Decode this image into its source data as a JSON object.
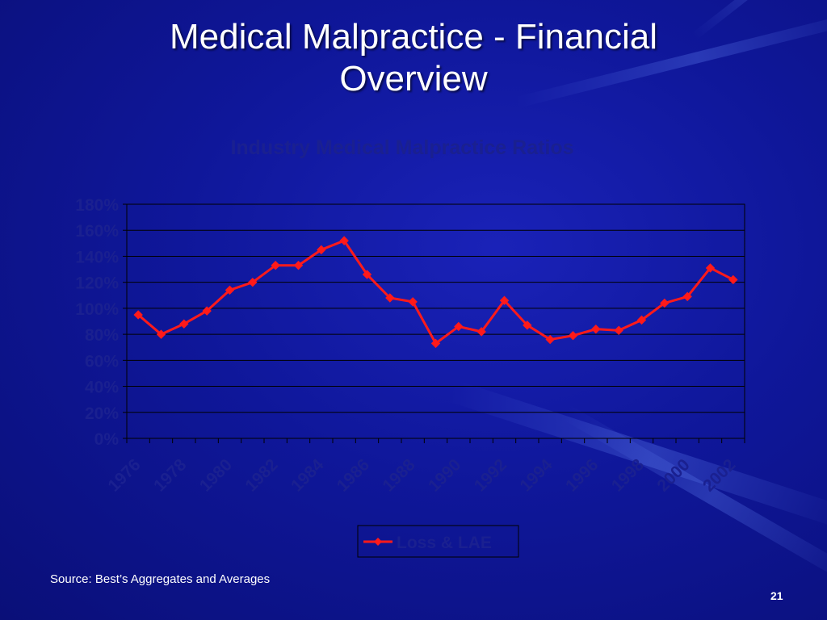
{
  "slide": {
    "title_line1": "Medical Malpractice - Financial",
    "title_line2": "Overview",
    "source": "Source: Best’s Aggregates and Averages",
    "page_number": "21"
  },
  "colors": {
    "background": "#0f179a",
    "series_line": "#ff1a1a",
    "chart_text": "#1a2090",
    "gridline": "#000000"
  },
  "chart_data": {
    "type": "line",
    "title": "Industry Medical Malpractice Ratios",
    "xlabel": "",
    "ylabel": "",
    "x": [
      1976,
      1977,
      1978,
      1979,
      1980,
      1981,
      1982,
      1983,
      1984,
      1985,
      1986,
      1987,
      1988,
      1989,
      1990,
      1991,
      1992,
      1993,
      1994,
      1995,
      1996,
      1997,
      1998,
      1999,
      2000,
      2001,
      2002
    ],
    "x_tick_labels": [
      "1976",
      "1978",
      "1980",
      "1982",
      "1984",
      "1986",
      "1988",
      "1990",
      "1992",
      "1994",
      "1996",
      "1998",
      "2000",
      "2002"
    ],
    "y_tick_labels": [
      "0%",
      "20%",
      "40%",
      "60%",
      "80%",
      "100%",
      "120%",
      "140%",
      "160%",
      "180%"
    ],
    "ylim": [
      0,
      180
    ],
    "grid": true,
    "legend_position": "bottom",
    "series": [
      {
        "name": "Loss & LAE",
        "values": [
          95,
          80,
          88,
          98,
          114,
          120,
          133,
          133,
          145,
          152,
          126,
          108,
          105,
          73,
          86,
          82,
          106,
          87,
          76,
          79,
          84,
          83,
          91,
          104,
          109,
          131,
          122
        ]
      }
    ]
  }
}
